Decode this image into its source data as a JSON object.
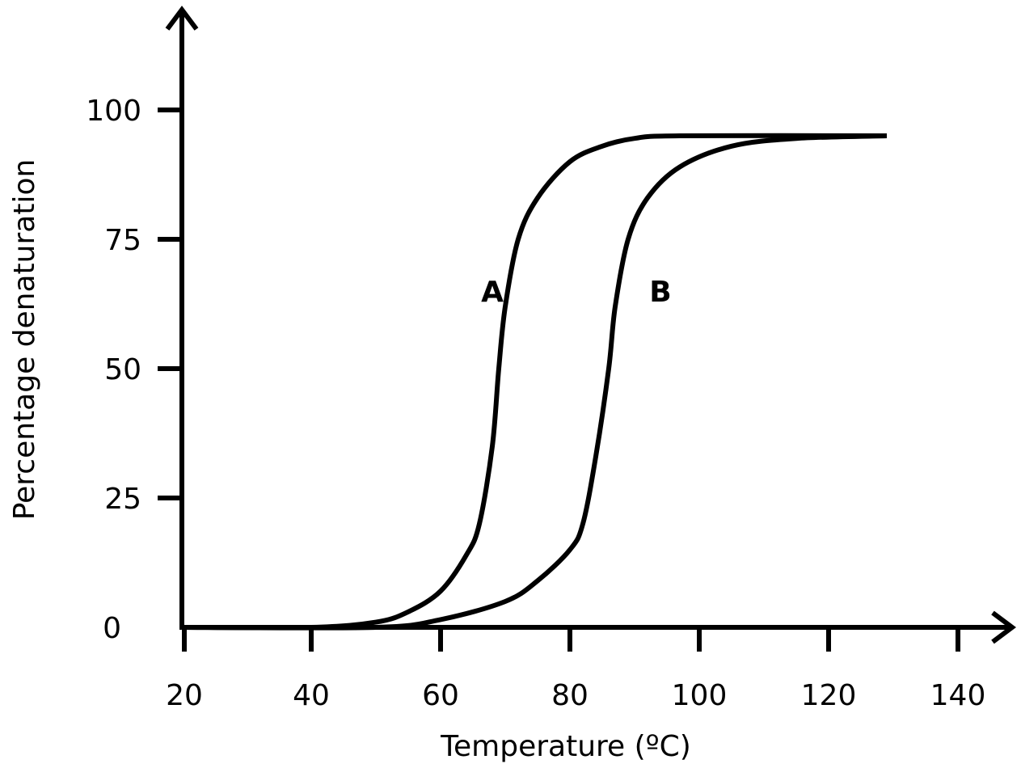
{
  "chart_data": {
    "type": "line",
    "title": "",
    "xlabel": "Temperature (ºC)",
    "ylabel": "Percentage denaturation",
    "xlim": [
      20,
      140
    ],
    "ylim": [
      0,
      100
    ],
    "xticks": [
      20,
      40,
      60,
      80,
      100,
      120,
      140
    ],
    "yticks": [
      0,
      25,
      50,
      75,
      100
    ],
    "grid": false,
    "series": [
      {
        "name": "A",
        "label_at": [
          68,
          65
        ],
        "x": [
          20,
          40,
          50,
          55,
          60,
          64,
          66,
          68,
          69,
          70,
          72,
          75,
          80,
          85,
          90,
          97,
          129
        ],
        "y": [
          0,
          0,
          1,
          3,
          7,
          14,
          20,
          35,
          50,
          62,
          75,
          83,
          90,
          93,
          94.5,
          95,
          95
        ]
      },
      {
        "name": "B",
        "label_at": [
          94,
          65
        ],
        "x": [
          20,
          50,
          60,
          70,
          75,
          80,
          82,
          84,
          86,
          87,
          89,
          92,
          97,
          105,
          115,
          129
        ],
        "y": [
          0,
          0,
          1.5,
          5,
          9,
          15,
          20,
          33,
          50,
          62,
          75,
          83,
          89,
          93,
          94.5,
          95
        ]
      }
    ],
    "line_color": "#000000"
  }
}
